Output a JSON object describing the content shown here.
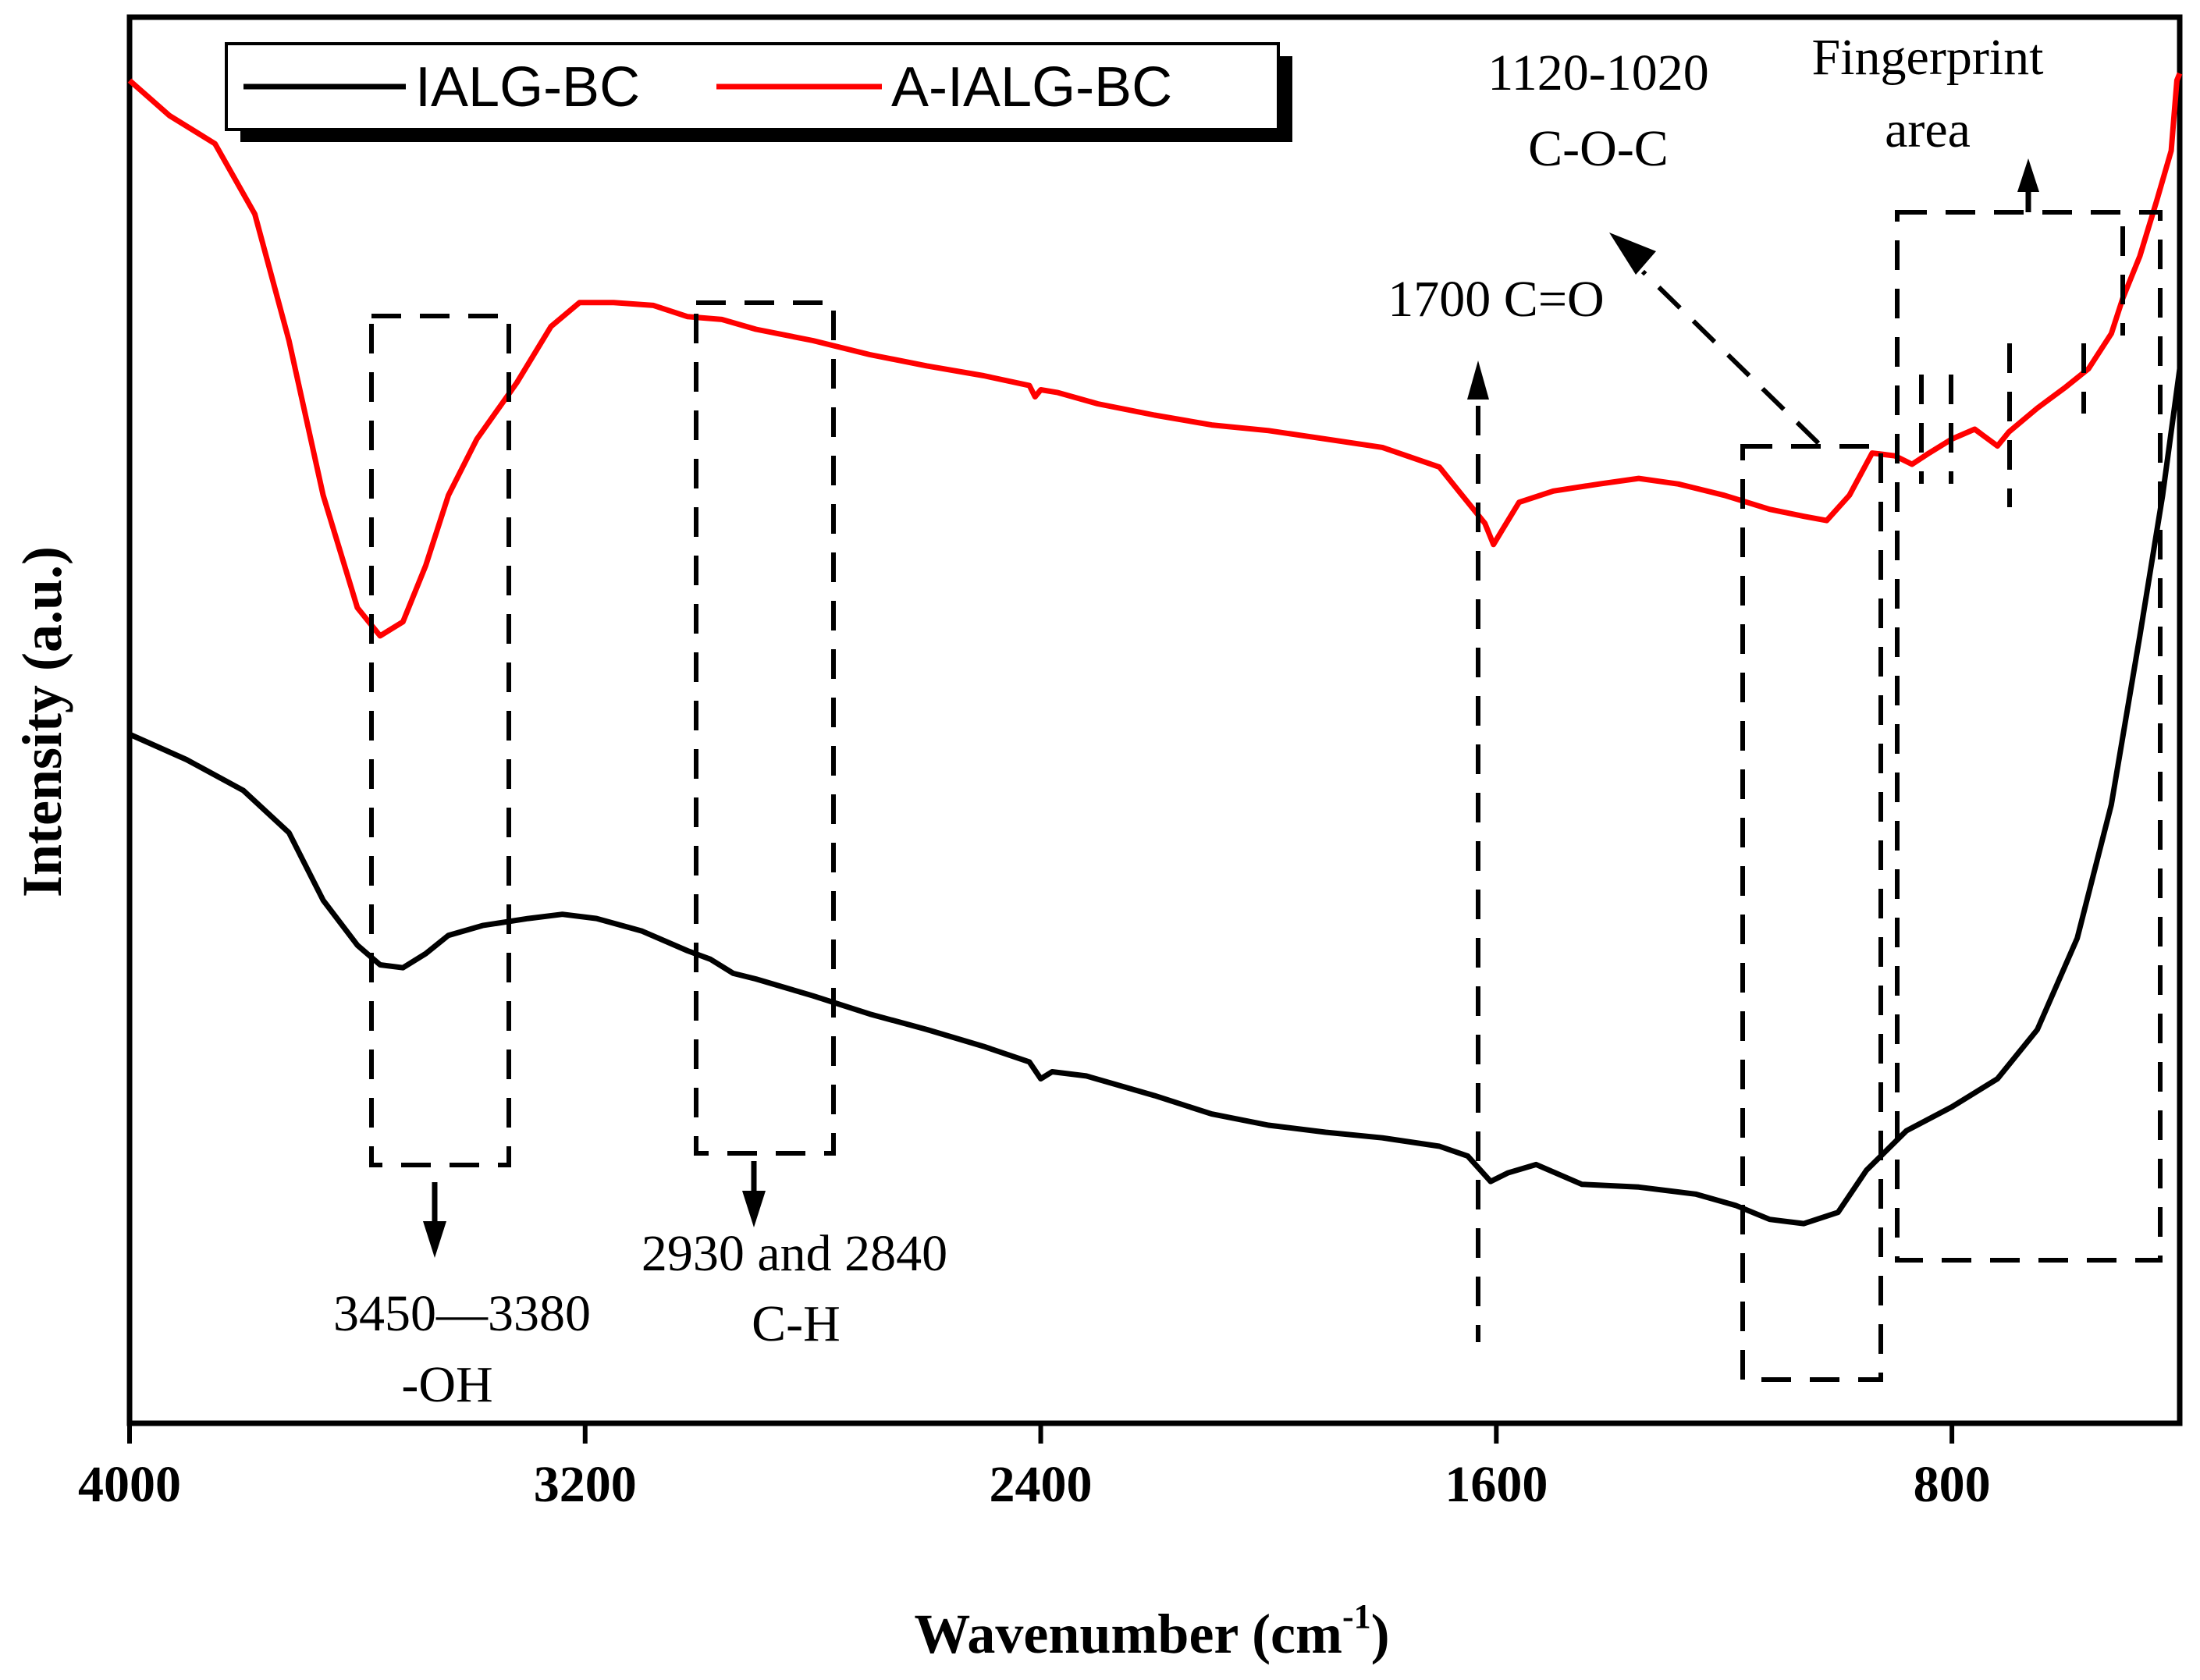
{
  "chart_data": {
    "type": "line",
    "title": "",
    "xlabel": "Wavenumber (cm",
    "xlabel_superscript": "-1",
    "xlabel_close": ")",
    "ylabel": "Intensity (a.u.)",
    "xlim": [
      4000,
      400
    ],
    "x_reversed": true,
    "y_ticks_shown": false,
    "xticks": [
      4000,
      3200,
      2400,
      1600,
      800
    ],
    "xtick_labels": [
      "4000",
      "3200",
      "2400",
      "1600",
      "800"
    ],
    "legend": {
      "placement": "top-left",
      "entries": [
        {
          "name": "IALG-BC",
          "color": "#000000"
        },
        {
          "name": "A-IALG-BC",
          "color": "#ff0000"
        }
      ]
    },
    "series": [
      {
        "name": "A-IALG-BC",
        "color": "#ff0000",
        "points": [
          [
            4000,
            0.955
          ],
          [
            3930,
            0.93
          ],
          [
            3850,
            0.91
          ],
          [
            3780,
            0.86
          ],
          [
            3720,
            0.77
          ],
          [
            3660,
            0.66
          ],
          [
            3600,
            0.58
          ],
          [
            3560,
            0.56
          ],
          [
            3520,
            0.57
          ],
          [
            3480,
            0.61
          ],
          [
            3440,
            0.66
          ],
          [
            3390,
            0.7
          ],
          [
            3320,
            0.74
          ],
          [
            3260,
            0.78
          ],
          [
            3210,
            0.797
          ],
          [
            3150,
            0.797
          ],
          [
            3080,
            0.795
          ],
          [
            3020,
            0.787
          ],
          [
            2960,
            0.785
          ],
          [
            2900,
            0.778
          ],
          [
            2800,
            0.77
          ],
          [
            2700,
            0.76
          ],
          [
            2600,
            0.752
          ],
          [
            2500,
            0.745
          ],
          [
            2420,
            0.738
          ],
          [
            2410,
            0.73
          ],
          [
            2400,
            0.735
          ],
          [
            2370,
            0.733
          ],
          [
            2300,
            0.725
          ],
          [
            2200,
            0.717
          ],
          [
            2100,
            0.71
          ],
          [
            2000,
            0.706
          ],
          [
            1900,
            0.7
          ],
          [
            1800,
            0.694
          ],
          [
            1700,
            0.68
          ],
          [
            1660,
            0.66
          ],
          [
            1620,
            0.64
          ],
          [
            1605,
            0.625
          ],
          [
            1590,
            0.635
          ],
          [
            1560,
            0.655
          ],
          [
            1500,
            0.663
          ],
          [
            1420,
            0.668
          ],
          [
            1350,
            0.672
          ],
          [
            1280,
            0.668
          ],
          [
            1200,
            0.66
          ],
          [
            1120,
            0.65
          ],
          [
            1060,
            0.645
          ],
          [
            1020,
            0.642
          ],
          [
            980,
            0.66
          ],
          [
            940,
            0.69
          ],
          [
            900,
            0.688
          ],
          [
            870,
            0.682
          ],
          [
            840,
            0.69
          ],
          [
            800,
            0.7
          ],
          [
            760,
            0.707
          ],
          [
            720,
            0.695
          ],
          [
            700,
            0.705
          ],
          [
            650,
            0.722
          ],
          [
            600,
            0.737
          ],
          [
            560,
            0.75
          ],
          [
            520,
            0.775
          ],
          [
            500,
            0.8
          ],
          [
            470,
            0.83
          ],
          [
            440,
            0.87
          ],
          [
            415,
            0.905
          ],
          [
            405,
            0.955
          ],
          [
            400,
            0.96
          ]
        ]
      },
      {
        "name": "IALG-BC",
        "color": "#000000",
        "points": [
          [
            4000,
            0.49
          ],
          [
            3900,
            0.472
          ],
          [
            3800,
            0.45
          ],
          [
            3720,
            0.42
          ],
          [
            3660,
            0.372
          ],
          [
            3600,
            0.34
          ],
          [
            3560,
            0.326
          ],
          [
            3520,
            0.324
          ],
          [
            3480,
            0.334
          ],
          [
            3440,
            0.347
          ],
          [
            3380,
            0.354
          ],
          [
            3300,
            0.359
          ],
          [
            3240,
            0.362
          ],
          [
            3180,
            0.359
          ],
          [
            3100,
            0.35
          ],
          [
            3020,
            0.336
          ],
          [
            2980,
            0.33
          ],
          [
            2940,
            0.32
          ],
          [
            2900,
            0.316
          ],
          [
            2800,
            0.304
          ],
          [
            2700,
            0.291
          ],
          [
            2600,
            0.28
          ],
          [
            2500,
            0.268
          ],
          [
            2420,
            0.257
          ],
          [
            2400,
            0.245
          ],
          [
            2380,
            0.25
          ],
          [
            2320,
            0.247
          ],
          [
            2200,
            0.233
          ],
          [
            2100,
            0.22
          ],
          [
            2000,
            0.212
          ],
          [
            1900,
            0.207
          ],
          [
            1800,
            0.203
          ],
          [
            1700,
            0.197
          ],
          [
            1650,
            0.19
          ],
          [
            1610,
            0.172
          ],
          [
            1580,
            0.178
          ],
          [
            1530,
            0.184
          ],
          [
            1450,
            0.17
          ],
          [
            1350,
            0.168
          ],
          [
            1250,
            0.163
          ],
          [
            1180,
            0.155
          ],
          [
            1120,
            0.145
          ],
          [
            1060,
            0.142
          ],
          [
            1000,
            0.15
          ],
          [
            950,
            0.18
          ],
          [
            880,
            0.208
          ],
          [
            800,
            0.225
          ],
          [
            720,
            0.245
          ],
          [
            650,
            0.28
          ],
          [
            580,
            0.345
          ],
          [
            520,
            0.44
          ],
          [
            470,
            0.56
          ],
          [
            430,
            0.66
          ],
          [
            400,
            0.75
          ]
        ]
      }
    ],
    "annotations": [
      {
        "text": "3450—3380",
        "x": 3415
      },
      {
        "text": "-OH",
        "x": 3415
      },
      {
        "text": "2930 and 2840",
        "x": 2885
      },
      {
        "text": "C-H",
        "x": 2885
      },
      {
        "text": "1700 C=O",
        "x": 1700
      },
      {
        "text": "1120-1020",
        "x": 1070
      },
      {
        "text": "C-O-C",
        "x": 1070
      },
      {
        "text": "Fingerprint",
        "x": 560
      },
      {
        "text": "area",
        "x": 560
      }
    ]
  }
}
